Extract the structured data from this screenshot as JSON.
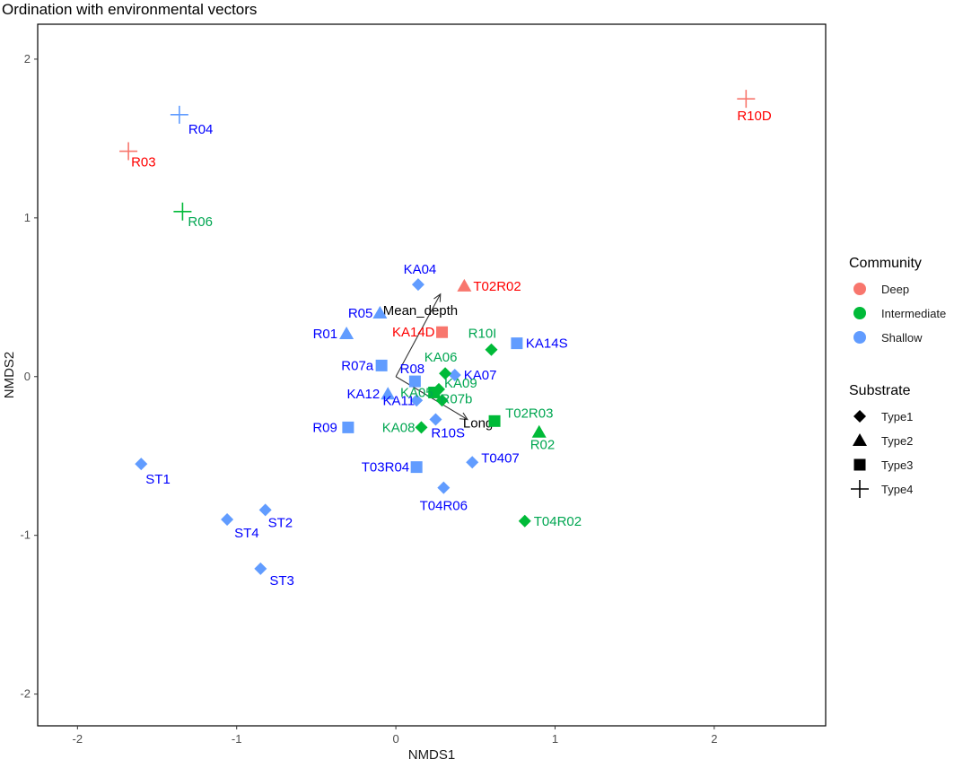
{
  "chart_data": {
    "type": "scatter",
    "title": "Ordination with environmental vectors",
    "xlabel": "NMDS1",
    "ylabel": "NMDS2",
    "xlim": [
      -2.25,
      2.7
    ],
    "ylim": [
      -2.2,
      2.22
    ],
    "xticks": [
      -2,
      -1,
      0,
      1,
      2
    ],
    "yticks": [
      -2,
      -1,
      0,
      1,
      2
    ],
    "grid": false,
    "legend_position": "right",
    "colors": {
      "Deep": "#F8766D",
      "Intermediate": "#00BA38",
      "Shallow": "#619CFF",
      "label_Deep": "#FF0000",
      "label_Intermediate": "#00A651",
      "label_Shallow": "#0000FF"
    },
    "legends": {
      "community": {
        "title": "Community",
        "items": [
          "Deep",
          "Intermediate",
          "Shallow"
        ]
      },
      "substrate": {
        "title": "Substrate",
        "items": [
          {
            "label": "Type1",
            "shape": "diamond"
          },
          {
            "label": "Type2",
            "shape": "triangle"
          },
          {
            "label": "Type3",
            "shape": "square"
          },
          {
            "label": "Type4",
            "shape": "plus"
          }
        ]
      }
    },
    "vectors": [
      {
        "name": "Mean_depth",
        "x": 0.28,
        "y": 0.52
      },
      {
        "name": "Long",
        "x": 0.45,
        "y": -0.27
      }
    ],
    "points": [
      {
        "label": "R10D",
        "x": 2.2,
        "y": 1.75,
        "community": "Deep",
        "substrate": "Type4"
      },
      {
        "label": "R03",
        "x": -1.68,
        "y": 1.42,
        "community": "Deep",
        "substrate": "Type4"
      },
      {
        "label": "T02R02",
        "x": 0.43,
        "y": 0.57,
        "community": "Deep",
        "substrate": "Type2"
      },
      {
        "label": "KA14D",
        "x": 0.29,
        "y": 0.28,
        "community": "Deep",
        "substrate": "Type3"
      },
      {
        "label": "R04",
        "x": -1.36,
        "y": 1.65,
        "community": "Shallow",
        "substrate": "Type4"
      },
      {
        "label": "KA04",
        "x": 0.14,
        "y": 0.58,
        "community": "Shallow",
        "substrate": "Type1"
      },
      {
        "label": "R05",
        "x": -0.1,
        "y": 0.4,
        "community": "Shallow",
        "substrate": "Type2"
      },
      {
        "label": "R01",
        "x": -0.31,
        "y": 0.27,
        "community": "Shallow",
        "substrate": "Type2"
      },
      {
        "label": "KA14S",
        "x": 0.76,
        "y": 0.21,
        "community": "Shallow",
        "substrate": "Type3"
      },
      {
        "label": "R07a",
        "x": -0.09,
        "y": 0.07,
        "community": "Shallow",
        "substrate": "Type3"
      },
      {
        "label": "R08",
        "x": 0.12,
        "y": -0.03,
        "community": "Shallow",
        "substrate": "Type3"
      },
      {
        "label": "KA07",
        "x": 0.37,
        "y": 0.01,
        "community": "Shallow",
        "substrate": "Type1"
      },
      {
        "label": "KA12",
        "x": -0.05,
        "y": -0.11,
        "community": "Shallow",
        "substrate": "Type2"
      },
      {
        "label": "KA11",
        "x": 0.13,
        "y": -0.15,
        "community": "Shallow",
        "substrate": "Type1"
      },
      {
        "label": "R09",
        "x": -0.3,
        "y": -0.32,
        "community": "Shallow",
        "substrate": "Type3"
      },
      {
        "label": "R10S",
        "x": 0.25,
        "y": -0.27,
        "community": "Shallow",
        "substrate": "Type1"
      },
      {
        "label": "T0407",
        "x": 0.48,
        "y": -0.54,
        "community": "Shallow",
        "substrate": "Type1"
      },
      {
        "label": "T03R04",
        "x": 0.13,
        "y": -0.57,
        "community": "Shallow",
        "substrate": "Type3"
      },
      {
        "label": "T04R06",
        "x": 0.3,
        "y": -0.7,
        "community": "Shallow",
        "substrate": "Type1"
      },
      {
        "label": "ST1",
        "x": -1.6,
        "y": -0.55,
        "community": "Shallow",
        "substrate": "Type1"
      },
      {
        "label": "ST2",
        "x": -0.82,
        "y": -0.84,
        "community": "Shallow",
        "substrate": "Type1"
      },
      {
        "label": "ST4",
        "x": -1.06,
        "y": -0.9,
        "community": "Shallow",
        "substrate": "Type1"
      },
      {
        "label": "ST3",
        "x": -0.85,
        "y": -1.21,
        "community": "Shallow",
        "substrate": "Type1"
      },
      {
        "label": "R06",
        "x": -1.34,
        "y": 1.04,
        "community": "Intermediate",
        "substrate": "Type4"
      },
      {
        "label": "R10I",
        "x": 0.6,
        "y": 0.17,
        "community": "Intermediate",
        "substrate": "Type1"
      },
      {
        "label": "KA06",
        "x": 0.31,
        "y": 0.02,
        "community": "Intermediate",
        "substrate": "Type1"
      },
      {
        "label": "KA09",
        "x": 0.27,
        "y": -0.08,
        "community": "Intermediate",
        "substrate": "Type1"
      },
      {
        "label": "KA05",
        "x": 0.24,
        "y": -0.1,
        "community": "Intermediate",
        "substrate": "Type3"
      },
      {
        "label": "R07b",
        "x": 0.29,
        "y": -0.15,
        "community": "Intermediate",
        "substrate": "Type1"
      },
      {
        "label": "KA08",
        "x": 0.16,
        "y": -0.32,
        "community": "Intermediate",
        "substrate": "Type1"
      },
      {
        "label": "T02R03",
        "x": 0.62,
        "y": -0.28,
        "community": "Intermediate",
        "substrate": "Type3"
      },
      {
        "label": "R02",
        "x": 0.9,
        "y": -0.35,
        "community": "Intermediate",
        "substrate": "Type2"
      },
      {
        "label": "T04R02",
        "x": 0.81,
        "y": -0.91,
        "community": "Intermediate",
        "substrate": "Type1"
      }
    ]
  }
}
